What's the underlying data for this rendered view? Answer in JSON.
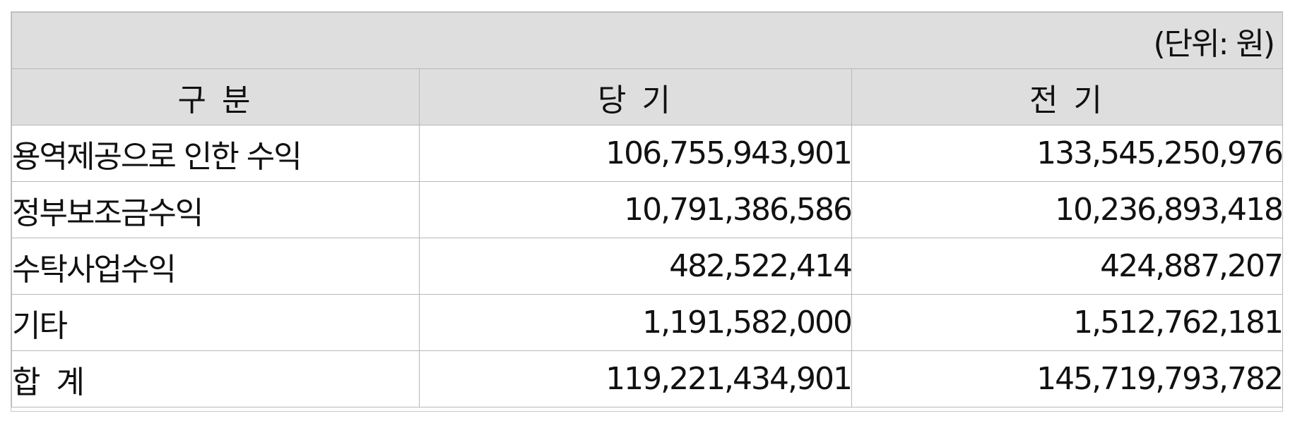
{
  "table": {
    "unit_note": "(단위: 원)",
    "headers": [
      "구 분",
      "당 기",
      "전 기"
    ],
    "rows": [
      {
        "label": "용역제공으로 인한 수익",
        "current": "106,755,943,901",
        "previous": "133,545,250,976"
      },
      {
        "label": "정부보조금수익",
        "current": "10,791,386,586",
        "previous": "10,236,893,418"
      },
      {
        "label": "수탁사업수익",
        "current": "482,522,414",
        "previous": "424,887,207"
      },
      {
        "label": "기타",
        "current": "1,191,582,000",
        "previous": "1,512,762,181"
      },
      {
        "label": "합 계",
        "current": "119,221,434,901",
        "previous": "145,719,793,782"
      }
    ]
  }
}
